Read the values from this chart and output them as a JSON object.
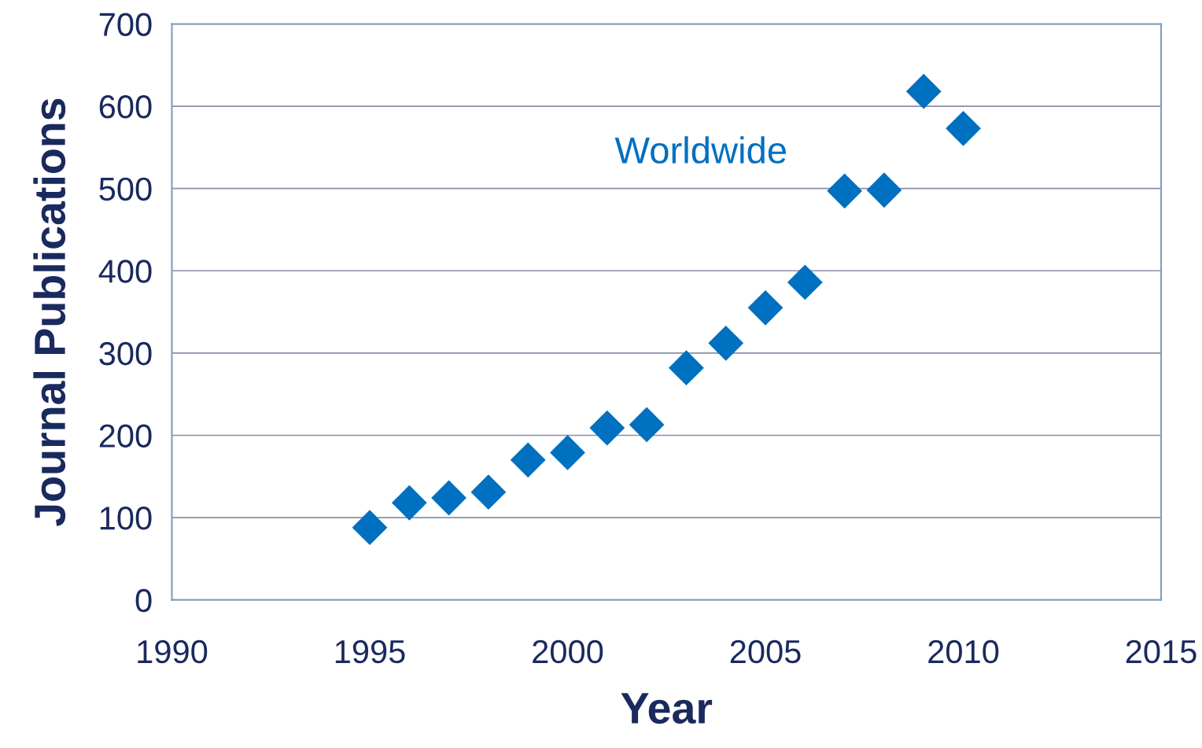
{
  "chart_data": {
    "type": "scatter",
    "xlabel": "Year",
    "ylabel": "Journal Publications",
    "x": [
      1995,
      1996,
      1997,
      1998,
      1999,
      2000,
      2001,
      2002,
      2003,
      2004,
      2005,
      2006,
      2007,
      2008,
      2009,
      2010
    ],
    "series": [
      {
        "name": "Worldwide",
        "color": "#0070c0",
        "values": [
          88,
          118,
          124,
          131,
          170,
          179,
          209,
          213,
          282,
          312,
          355,
          386,
          497,
          498,
          618,
          573
        ]
      }
    ],
    "xlim": [
      1990,
      2015
    ],
    "xticks": [
      1990,
      1995,
      2000,
      2005,
      2010,
      2015
    ],
    "ylim": [
      0,
      700
    ],
    "yticks": [
      0,
      100,
      200,
      300,
      400,
      500,
      600,
      700
    ],
    "grid": "y",
    "marker": "diamond",
    "legend": false
  }
}
